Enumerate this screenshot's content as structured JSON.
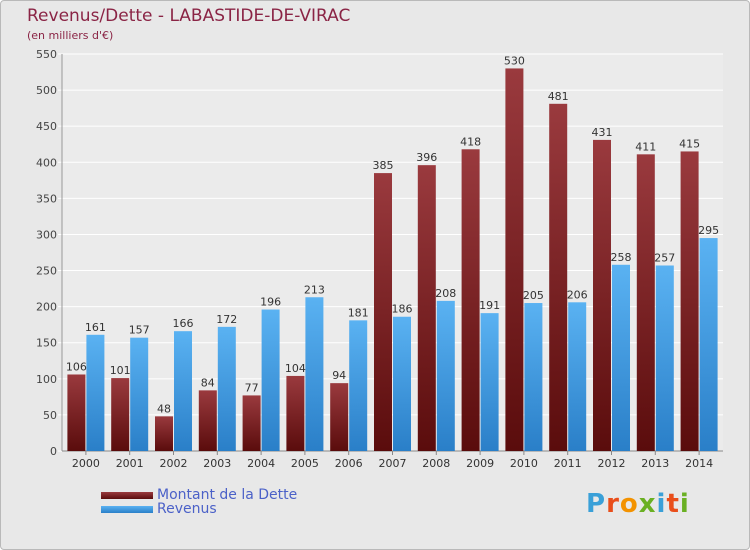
{
  "chart_data": {
    "type": "bar",
    "title": "Revenus/Dette - LABASTIDE-DE-VIRAC",
    "subtitle": "(en milliers d'€)",
    "categories": [
      "2000",
      "2001",
      "2002",
      "2003",
      "2004",
      "2005",
      "2006",
      "2007",
      "2008",
      "2009",
      "2010",
      "2011",
      "2012",
      "2013",
      "2014"
    ],
    "series": [
      {
        "name": "Montant de la Dette",
        "color": "#7a1c1c",
        "values": [
          106,
          101,
          48,
          84,
          77,
          104,
          94,
          385,
          396,
          418,
          530,
          481,
          431,
          411,
          415
        ]
      },
      {
        "name": "Revenus",
        "color": "#3f9ee6",
        "values": [
          161,
          157,
          166,
          172,
          196,
          213,
          181,
          186,
          208,
          191,
          205,
          206,
          258,
          257,
          295
        ]
      }
    ],
    "y_ticks": [
      "0",
      "50",
      "100",
      "150",
      "200",
      "250",
      "300",
      "350",
      "400",
      "450",
      "500",
      "550"
    ],
    "ylim": [
      0,
      550
    ],
    "grid": "horizontal",
    "legend_position": "bottom-left"
  },
  "logo": {
    "letters": [
      "P",
      "r",
      "o",
      "x",
      "i",
      "t",
      "i"
    ],
    "colors": [
      "#3aa0d8",
      "#e94e1b",
      "#f39200",
      "#6ab023",
      "#3aa0d8",
      "#e94e1b",
      "#6ab023"
    ]
  }
}
